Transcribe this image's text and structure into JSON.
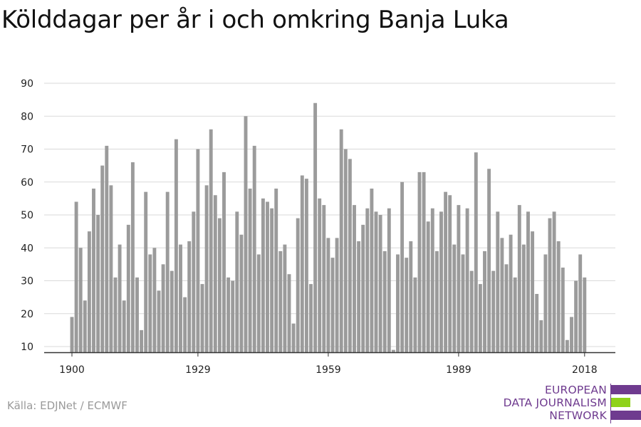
{
  "title": "Kölddagar per år i och omkring Banja Luka",
  "source": "Källa: EDJNet / ECMWF",
  "logo": {
    "lines": [
      "EUROPEAN",
      "DATA JOURNALISM",
      "NETWORK"
    ],
    "colors": {
      "purple": "#6f3b8f",
      "green": "#8fd21b"
    }
  },
  "colors": {
    "bar": "#9b9b9b",
    "grid": "#d9d9d9",
    "axis": "#333333"
  },
  "chart_data": {
    "type": "bar",
    "title": "Kölddagar per år i och omkring Banja Luka",
    "xlabel": "",
    "ylabel": "",
    "ylim": [
      8,
      90
    ],
    "yticks": [
      10,
      20,
      30,
      40,
      50,
      60,
      70,
      80,
      90
    ],
    "xticks": [
      1900,
      1929,
      1959,
      1989,
      2018
    ],
    "grid": true,
    "x_start": 1900,
    "values": [
      19,
      54,
      40,
      24,
      45,
      58,
      50,
      65,
      71,
      59,
      31,
      41,
      24,
      47,
      66,
      31,
      15,
      57,
      38,
      40,
      27,
      35,
      57,
      33,
      73,
      41,
      25,
      42,
      51,
      70,
      29,
      59,
      76,
      56,
      49,
      63,
      31,
      30,
      51,
      44,
      80,
      58,
      71,
      38,
      55,
      54,
      52,
      58,
      39,
      41,
      32,
      17,
      49,
      62,
      61,
      29,
      84,
      55,
      53,
      43,
      37,
      43,
      76,
      70,
      67,
      53,
      42,
      47,
      52,
      58,
      51,
      50,
      39,
      52,
      9,
      38,
      60,
      37,
      42,
      31,
      63,
      63,
      48,
      52,
      39,
      51,
      57,
      56,
      41,
      53,
      38,
      52,
      33,
      69,
      29,
      39,
      64,
      33,
      51,
      43,
      35,
      44,
      31,
      53,
      41,
      51,
      45,
      26,
      18,
      38,
      49,
      51,
      42,
      34,
      12,
      19,
      30,
      38,
      31
    ]
  }
}
